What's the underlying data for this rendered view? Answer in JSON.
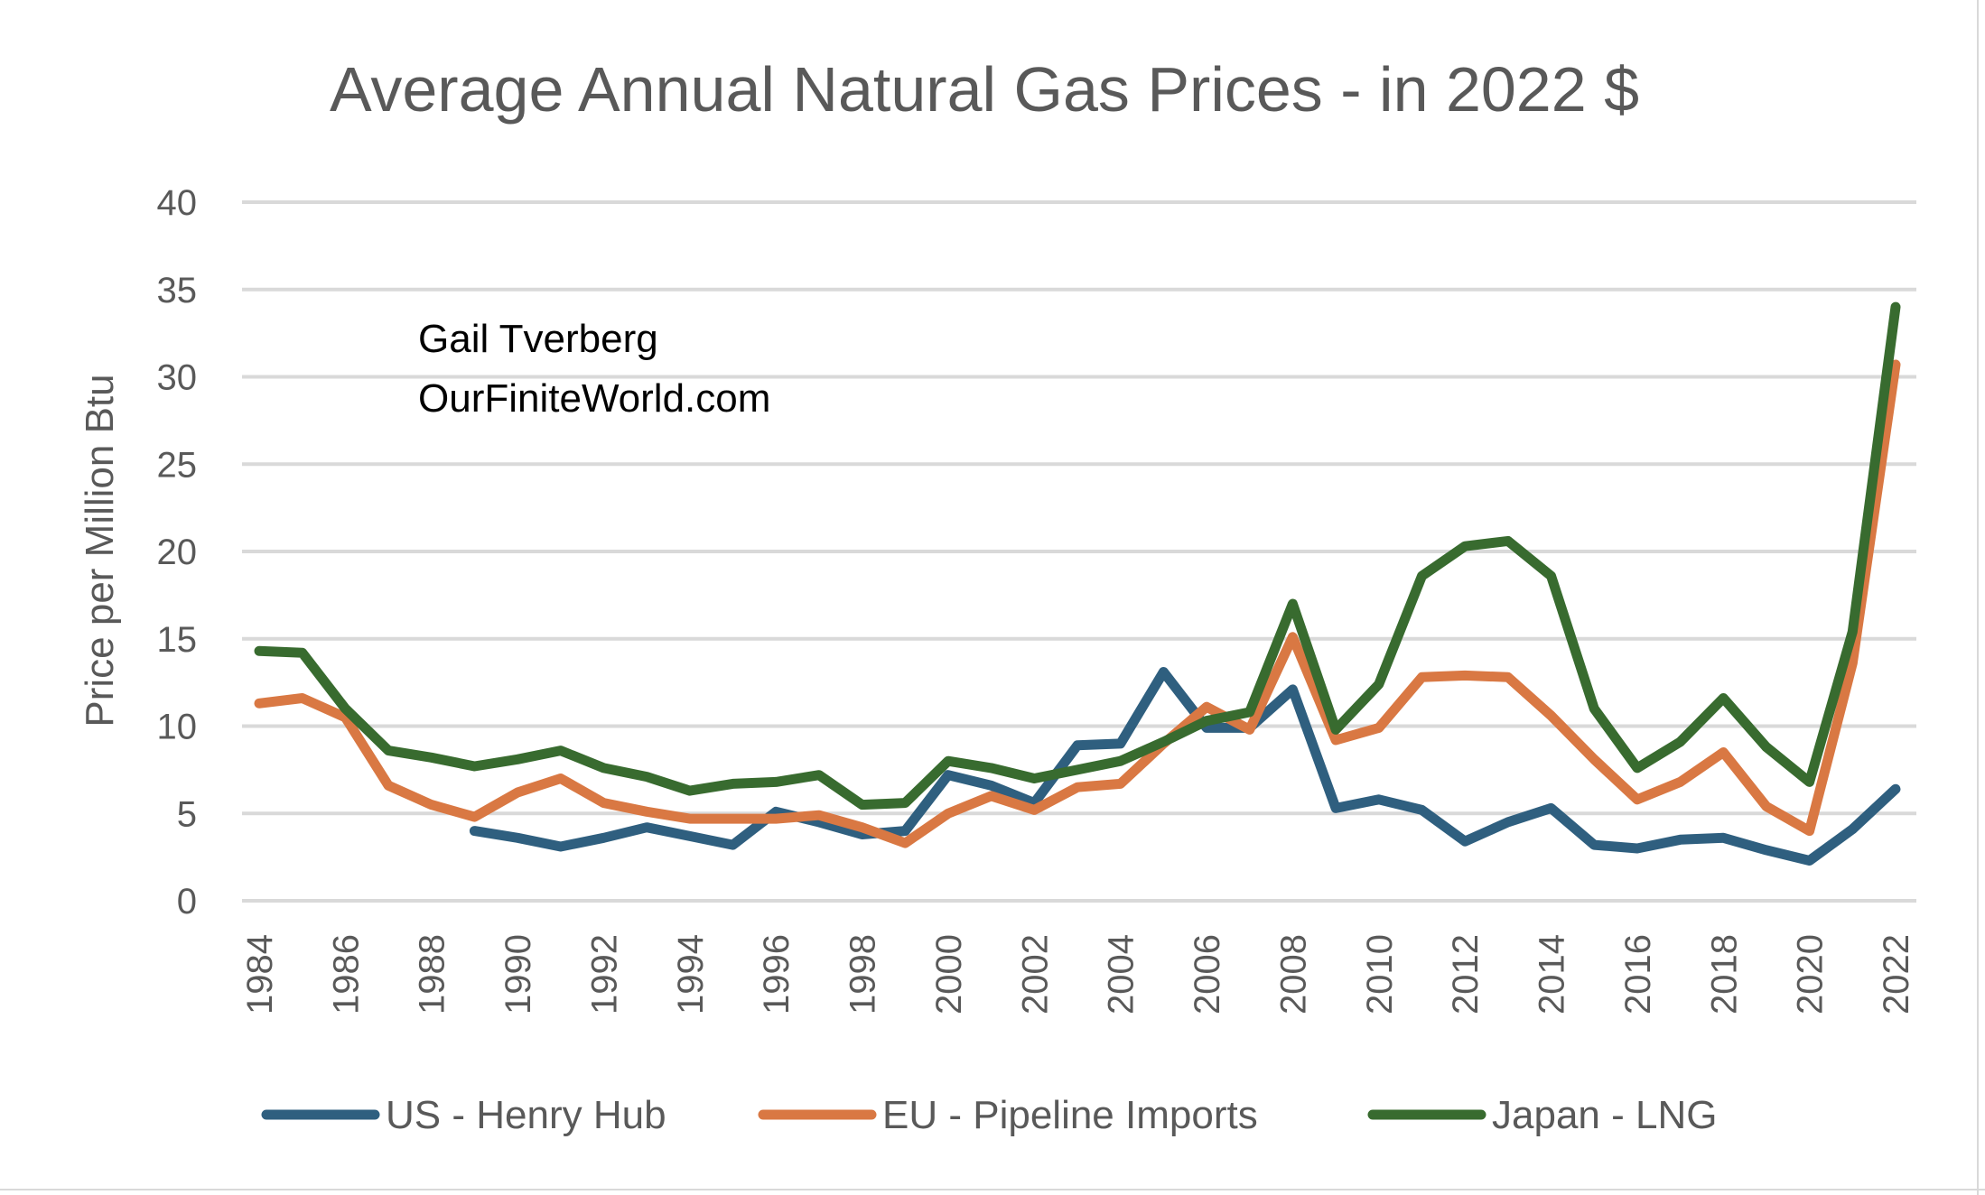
{
  "chart_data": {
    "type": "line",
    "title": "Average Annual Natural Gas Prices - in 2022 $",
    "xlabel": "",
    "ylabel": "Price per Million Btu",
    "ylim": [
      0,
      40
    ],
    "yticks": [
      0,
      5,
      10,
      15,
      20,
      25,
      30,
      35,
      40
    ],
    "grid": true,
    "legend_position": "bottom",
    "annotations": [
      "Gail Tverberg",
      "OurFiniteWorld.com"
    ],
    "x": [
      1984,
      1985,
      1986,
      1987,
      1988,
      1989,
      1990,
      1991,
      1992,
      1993,
      1994,
      1995,
      1996,
      1997,
      1998,
      1999,
      2000,
      2001,
      2002,
      2003,
      2004,
      2005,
      2006,
      2007,
      2008,
      2009,
      2010,
      2011,
      2012,
      2013,
      2014,
      2015,
      2016,
      2017,
      2018,
      2019,
      2020,
      2021,
      2022
    ],
    "xtick_labels": [
      "1984",
      "1986",
      "1988",
      "1990",
      "1992",
      "1994",
      "1996",
      "1998",
      "2000",
      "2002",
      "2004",
      "2006",
      "2008",
      "2010",
      "2012",
      "2014",
      "2016",
      "2018",
      "2020",
      "2022"
    ],
    "series": [
      {
        "name": "US - Henry Hub",
        "color": "#2f5f7f",
        "values": [
          null,
          null,
          null,
          null,
          null,
          4.0,
          3.6,
          3.1,
          3.6,
          4.2,
          3.7,
          3.2,
          5.1,
          4.5,
          3.8,
          4.0,
          7.2,
          6.6,
          5.6,
          8.9,
          9.0,
          13.1,
          9.9,
          9.9,
          12.1,
          5.3,
          5.8,
          5.2,
          3.4,
          4.5,
          5.3,
          3.2,
          3.0,
          3.5,
          3.6,
          2.9,
          2.3,
          4.1,
          6.4
        ]
      },
      {
        "name": "EU - Pipeline Imports",
        "color": "#d97843",
        "values": [
          11.3,
          11.6,
          10.5,
          6.6,
          5.5,
          4.8,
          6.2,
          7.0,
          5.6,
          5.1,
          4.7,
          4.7,
          4.7,
          4.9,
          4.2,
          3.3,
          5.0,
          6.0,
          5.2,
          6.5,
          6.7,
          9.0,
          11.1,
          9.8,
          15.1,
          9.2,
          9.9,
          12.8,
          12.9,
          12.8,
          10.6,
          8.1,
          5.8,
          6.8,
          8.5,
          5.4,
          4.0,
          13.6,
          30.7
        ]
      },
      {
        "name": "Japan - LNG",
        "color": "#386b2f",
        "values": [
          14.3,
          14.2,
          11.0,
          8.6,
          8.2,
          7.7,
          8.1,
          8.6,
          7.6,
          7.1,
          6.3,
          6.7,
          6.8,
          7.2,
          5.5,
          5.6,
          8.0,
          7.6,
          7.0,
          7.5,
          8.0,
          9.1,
          10.3,
          10.8,
          17.0,
          9.8,
          12.4,
          18.6,
          20.3,
          20.6,
          18.6,
          11.0,
          7.6,
          9.1,
          11.6,
          8.8,
          6.8,
          15.4,
          34.0
        ]
      }
    ]
  }
}
